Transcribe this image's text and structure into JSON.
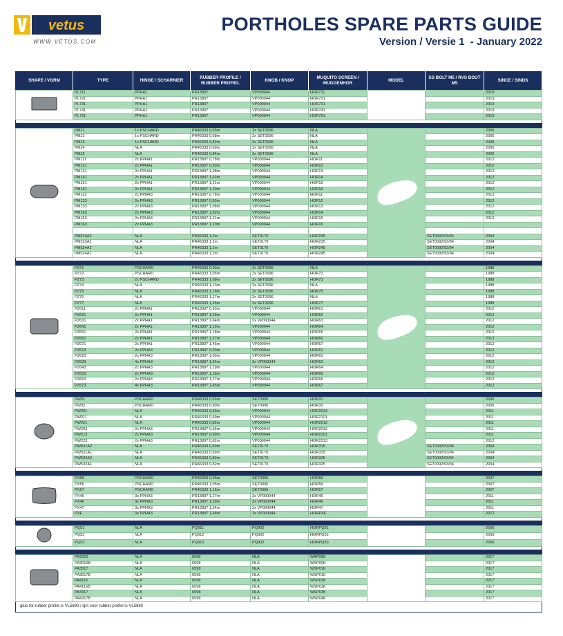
{
  "header": {
    "brand": "vetus",
    "website": "WWW.VETUS.COM",
    "title": "PORTHOLES SPARE PARTS GUIDE",
    "version": "Version / Versie 1  - January 2022"
  },
  "table": {
    "columns": [
      "SHAPE / VORM",
      "TYPE",
      "HINGE / SCHARNIER",
      "RUBBER PROFILE / RUBBER PROFIEL",
      "KNOB / KNOP",
      "MUQUITO SCREEN / MUGGENHOR",
      "MODEL",
      "SS BOLT M5 / RVS BOUT M5",
      "SINCE / SINDS"
    ],
    "groups": [
      [
        [
          "PL711",
          "PPHA1",
          "PR13897",
          "VP000044",
          "HOR711",
          null,
          "2019"
        ],
        [
          "PL721",
          "PPHA1",
          "PR13897",
          "VP000044",
          "HOR721",
          null,
          "2019"
        ],
        [
          "PL731",
          "PPHA1",
          "PR13897",
          "VP000044",
          "HOR731",
          null,
          "2019"
        ],
        [
          "PL741",
          "PPHA1",
          "PR13897",
          "VP000044",
          "HOR741",
          null,
          "2019"
        ],
        [
          "PL751",
          "PPHA1",
          "PR13897",
          "VP000044",
          "HOR751",
          null,
          "2019"
        ]
      ],
      [
        [
          "PM21",
          "1x PSCHARD",
          "PR46333 0,55m",
          "2x SET0096",
          "NLA",
          null,
          "2006"
        ],
        [
          "PM22",
          "1x PSCHARD",
          "PR46333 0,68m",
          "2x SET0096",
          "NLA",
          null,
          "2006"
        ],
        [
          "PM23",
          "1x PSCHARD",
          "PR46333 0,82m",
          "2x SET0096",
          "NLA",
          null,
          "2006"
        ],
        [
          "PM24",
          "NLA",
          "PR46333 0,69m",
          "2x SET0096",
          "NLA",
          null,
          "2006"
        ],
        [
          "PM25",
          "NLA",
          "PR46333 0,84m",
          "2x SET0096",
          "NLA",
          null,
          "2006"
        ],
        [
          "PM111",
          "2x PPHA1",
          "PR13897 0,78m",
          "VP000044",
          "HOR11",
          null,
          "2012"
        ],
        [
          "PM121",
          "2x PPHA1",
          "PR13897 0,93m",
          "VP000044",
          "HOR12",
          null,
          "2012"
        ],
        [
          "PM131",
          "2x PPHA1",
          "PR13897 1,08m",
          "VP000044",
          "HOR13",
          null,
          "2012"
        ],
        [
          "PM141",
          "2x PPHA1",
          "PR13897 1,02m",
          "VP000044",
          "HOR14",
          null,
          "2012"
        ],
        [
          "PM151",
          "2x PPHA1",
          "PR13897 1,21m",
          "VP000044",
          "HOR15",
          null,
          "2012"
        ],
        [
          "PM161",
          "2x PPHA1",
          "PR13897 1,20m",
          "VP000044",
          "HOR16",
          null,
          "2012"
        ],
        [
          "PM113",
          "2x PPHA3",
          "PR13897 0,78m",
          "VP000044",
          "HOR11",
          null,
          "2012"
        ],
        [
          "PM123",
          "2x PPHA3",
          "PR13897 0,93m",
          "VP000044",
          "HOR12",
          null,
          "2012"
        ],
        [
          "PM133",
          "2x PPHA3",
          "PR13897 1,08m",
          "VP000044",
          "HOR13",
          null,
          "2012"
        ],
        [
          "PM143",
          "2x PPHA3",
          "PR13897 1,02m",
          "VP000044",
          "HOR14",
          null,
          "2012"
        ],
        [
          "PM153",
          "2x PPHA3",
          "PR13897 1,21m",
          "VP000044",
          "HOR15",
          null,
          "2012"
        ],
        [
          "PM163",
          "2x PPHA3",
          "PR13897 1,20m",
          "VP000044",
          "HOR16",
          null,
          null
        ],
        [
          null,
          null,
          null,
          null,
          null,
          null,
          null
        ],
        [
          "PM523A2",
          "NLA",
          "PR46333 1,2m",
          "SET0170",
          "HOR235",
          "SET0092/93/94",
          "2004"
        ],
        [
          "PM523A1",
          "NLA",
          "PR46333 1,2m",
          "SET0170",
          "HOR235",
          "SET0092/93/94",
          "2004"
        ],
        [
          "PM524A2",
          "NLA",
          "PR46333 1,2m",
          "SET0170",
          "HOR245",
          "SET0092/93/94",
          "2004"
        ],
        [
          "PM524A1",
          "NLA",
          "PR46333 1,2m",
          "SET0170",
          "HOR245",
          "SET0092/93/94",
          "2004"
        ]
      ],
      [
        [
          "PZ71",
          "PSCHARD",
          "PR46333 0,93m",
          "2x SET0096",
          "NLA",
          null,
          "1988"
        ],
        [
          "PZ72",
          "PSCHARD",
          "PR46333 1,05m",
          "2x SET0096",
          "HOR72",
          null,
          "1988"
        ],
        [
          "PZ73",
          "2x PSCHARD",
          "PR46333 1,09m",
          "2x SET0096",
          "HOR73",
          null,
          "1988"
        ],
        [
          "PZ74",
          "NLA",
          "PR46333 1,13m",
          "2x SET0096",
          "NLA",
          null,
          "1988"
        ],
        [
          "PZ75",
          "NLA",
          "PR46333 1,18m",
          "2x SET0096",
          "HOR75",
          null,
          "1988"
        ],
        [
          "PZ76",
          "NLA",
          "PR46333 1,27m",
          "2x SET0096",
          "NLA",
          null,
          "1988"
        ],
        [
          "PZ77",
          "NLA",
          "PR46333 1,45m",
          "2x SET0096",
          "HOR77",
          null,
          "1988"
        ],
        [
          "PZ611",
          "2x PPHA1",
          "PR13897 0,93m",
          "VP000044",
          "HOR61",
          null,
          "2012"
        ],
        [
          "PZ621",
          "2x PPHA1",
          "PR13897 1,09m",
          "VP000044",
          "HOR62",
          null,
          "2012"
        ],
        [
          "PZ631",
          "2x PPHA1",
          "PR13897 1,64m",
          "2x VP000044",
          "HOR63",
          null,
          "2012"
        ],
        [
          "PZ641",
          "2x PPHA1",
          "PR13897 1,19m",
          "VP000044",
          "HOR64",
          null,
          "2012"
        ],
        [
          "PZ651",
          "2x PPHA1",
          "PR13897 1,18m",
          "VP000044",
          "HOR65",
          null,
          "2012"
        ],
        [
          "PZ661",
          "2x PPHA1",
          "PR13897 1,27m",
          "VP000044",
          "HOR66",
          null,
          "2012"
        ],
        [
          "PZ671",
          "2x PPHA1",
          "PR13897 1,45m",
          "VP000044",
          "HOR67",
          null,
          "2012"
        ],
        [
          "PZ613",
          "2x PPHA3",
          "PR13897 0,93m",
          "VP000044",
          "HOR61",
          null,
          "2012"
        ],
        [
          "PZ623",
          "2x PPHA3",
          "PR13897 1,09m",
          "VP000044",
          "HOR62",
          null,
          "2012"
        ],
        [
          "PZ633",
          "4x PPHA3",
          "PR13897 1,64m",
          "2x VP000044",
          "HOR63",
          null,
          "2012"
        ],
        [
          "PZ643",
          "2x PPHA3",
          "PR13897 1,19m",
          "VP000044",
          "HOR64",
          null,
          "2012"
        ],
        [
          "PZ653",
          "2x PPHA3",
          "PR13897 1,18m",
          "VP000044",
          "HOR65",
          null,
          "2012"
        ],
        [
          "PZ663",
          "2x PPHA3",
          "PR13897 1,27m",
          "VP000044",
          "HOR66",
          null,
          "2012"
        ],
        [
          "PZ673",
          "4x PPHA3",
          "PR13897 1,45m",
          "VP000044",
          "HOR67",
          null,
          "2012"
        ]
      ],
      [
        [
          "PW31",
          "PSCHARD",
          "PR46333 0,65m",
          "SET0096",
          "HOR31",
          null,
          "2006"
        ],
        [
          "PW32",
          "PSCHARD",
          "PR46333 0,80m",
          "SET0096",
          "HOR32",
          null,
          "2006"
        ],
        [
          "PW201",
          "NLA",
          "PR46333 0,65m",
          "VP000044",
          "HOR2013",
          null,
          "2011"
        ],
        [
          "PW211",
          "NLA",
          "PR46333 0,69m",
          "VP000044",
          "HOR2113",
          null,
          "2011"
        ],
        [
          "PW221",
          "NLA",
          "PR46333 0,82m",
          "VP000044",
          "HOR2213",
          null,
          "2011"
        ],
        [
          "PW203",
          "2x PPHA3",
          "PR13897 0,65m",
          "VP000044",
          "HOR2013",
          null,
          "2011"
        ],
        [
          "PW213",
          "2x PPHA3",
          "PR13897 0,69m",
          "VP000044",
          "HOR2113",
          null,
          "2011"
        ],
        [
          "PW223",
          "2x PPHA3",
          "PR13897 0,82m",
          "VP000044",
          "HOR2213",
          null,
          "2012"
        ],
        [
          "PW531A2",
          "NLA",
          "PR46333 0,69m",
          "SET0170",
          "HOR315",
          "SET0092/93/94",
          "2004"
        ],
        [
          "PW531A1",
          "NLA",
          "PR46333 0,69m",
          "SET0170",
          "HOR315",
          "SET0092/93/94",
          "2004"
        ],
        [
          "PW532A2",
          "NLA",
          "PR46333 0,82m",
          "SET0170",
          "HOR325",
          "SET0092/93/94",
          "2004"
        ],
        [
          "PW532A1",
          "NLA",
          "PR46333 0,82m",
          "SET0170",
          "HOR325",
          "SET0092/93/94",
          "2004"
        ]
      ],
      [
        [
          "PX55",
          "PSCHARD",
          "PR46333 0,96m",
          "SET0096",
          "HOR55",
          null,
          "2007"
        ],
        [
          "PX56",
          "PSCHARD",
          "PR46333 1,05m",
          "SET0096",
          "HOR56",
          null,
          "2007"
        ],
        [
          "PX57",
          "PSCHARD",
          "PR46333 1,15m",
          "SET0096",
          "HOR57",
          null,
          "2007"
        ],
        [
          "PX45",
          "3x PPHA3",
          "PR13897 1,27m",
          "2x VP000044",
          "HOR45",
          null,
          "2011"
        ],
        [
          "PX46",
          "3x PPHA3",
          "PR13897 1,39m",
          "2x VP000044",
          "HOR46",
          null,
          "2011"
        ],
        [
          "PX47",
          "3x PPHA3",
          "PR13897 1,54m",
          "2x VP000044",
          "HOR47",
          null,
          "2011"
        ],
        [
          "PXF",
          "3x PPHA3",
          "PR13897 1,48m",
          "2x VP000044",
          "HORPXF",
          null,
          "2012"
        ]
      ],
      [
        [
          "PQ51",
          "NLA",
          "PQ911",
          "PQ902",
          "HORPQ51",
          null,
          "2006"
        ],
        [
          "PQ52",
          "NLA",
          "PQ912",
          "PQ902",
          "HORPQ52",
          null,
          "2006"
        ],
        [
          "PQ53",
          "NLA",
          "PQ913",
          "PQ902",
          "HORPQ53",
          null,
          "2006"
        ]
      ],
      [
        [
          "PA3016",
          "NLA",
          "6598",
          "NLA",
          "WAP00K",
          null,
          "2017"
        ],
        [
          "PA3016B",
          "NLA",
          "6598",
          "NLA",
          "WSP00K",
          null,
          "2017"
        ],
        [
          "PA3517",
          "NLA",
          "6598",
          "NLA",
          "WSP01K",
          null,
          "2017"
        ],
        [
          "PA3617B",
          "NLA",
          "6598",
          "NLA",
          "WSP01K",
          null,
          "2017"
        ],
        [
          "PA4116",
          "NLA",
          "6598",
          "NLA",
          "WSP02K",
          null,
          "2017"
        ],
        [
          "PA4116B",
          "NLA",
          "6598",
          "NLA",
          "WSP02K",
          null,
          "2017"
        ],
        [
          "PA4317",
          "NLA",
          "6598",
          "NLA",
          "WSP03K",
          null,
          "2017"
        ],
        [
          "PA4317B",
          "NLA",
          "6598",
          "NLA",
          "WSP04K",
          null,
          "2017"
        ]
      ]
    ],
    "footer": "glue for rubber profile is VL5880 / lijm voor rubber profiel is VL5880"
  }
}
